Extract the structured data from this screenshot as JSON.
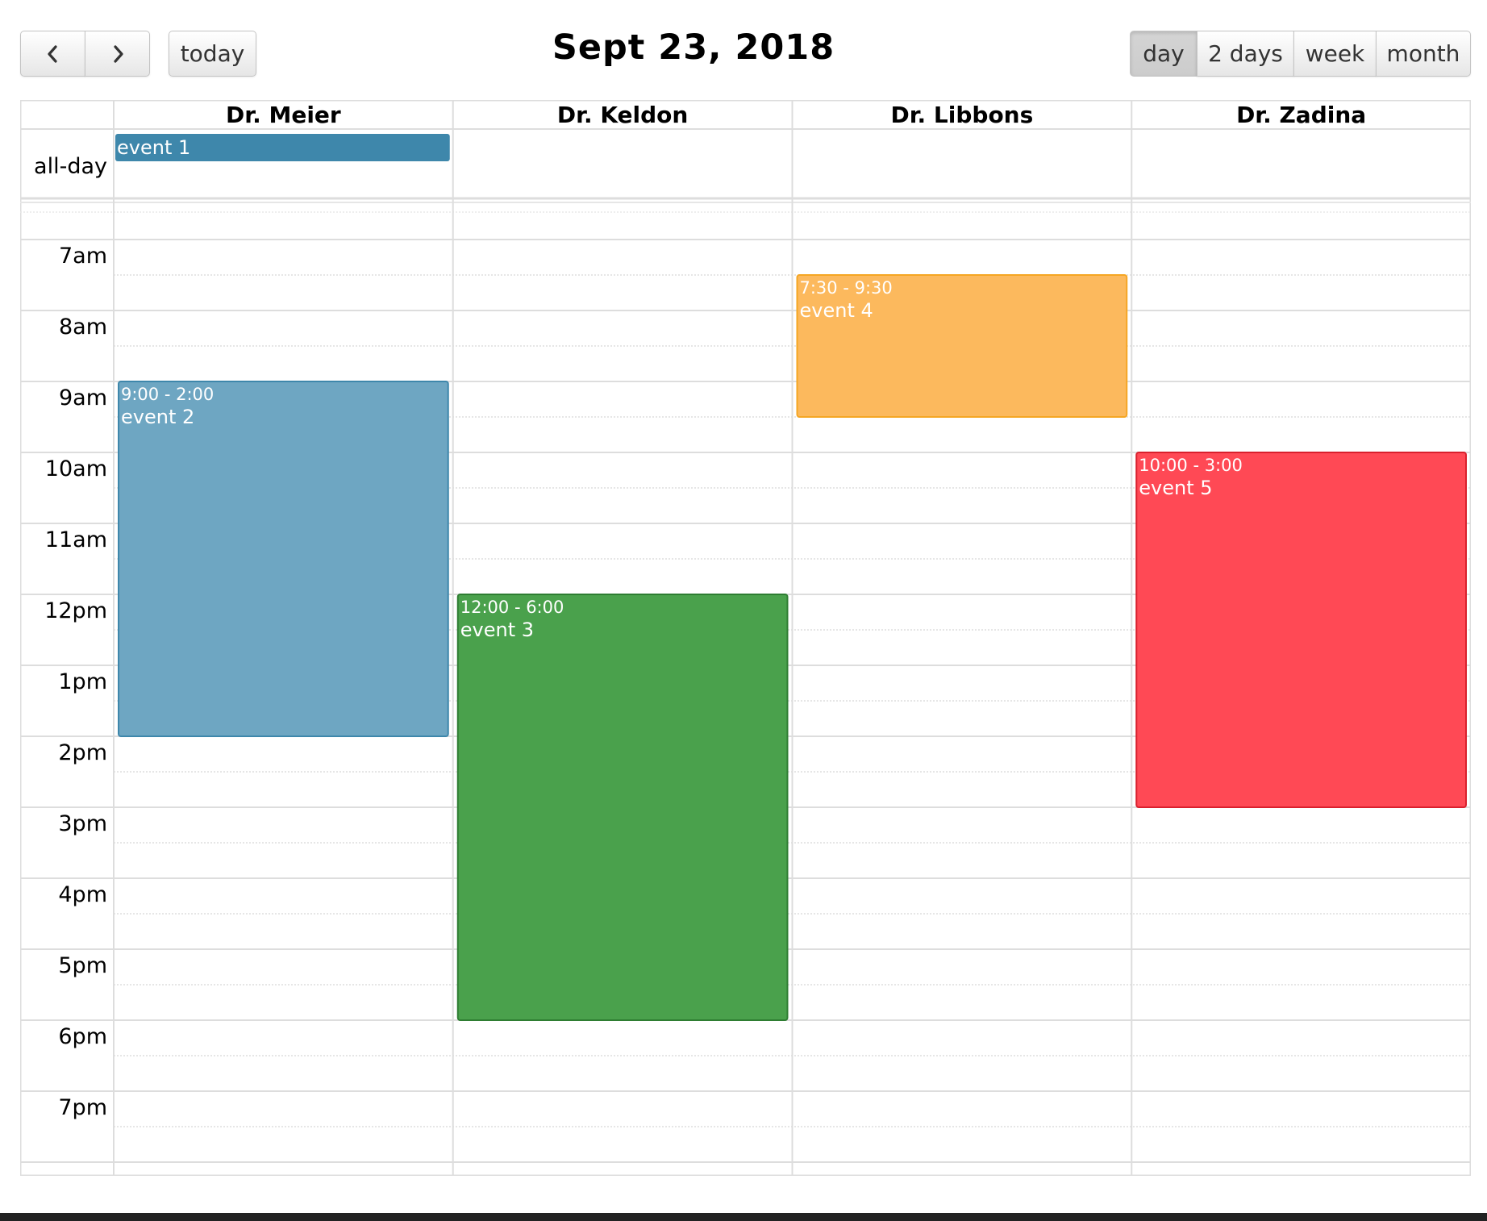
{
  "toolbar": {
    "prev_icon": "chevron-left-icon",
    "next_icon": "chevron-right-icon",
    "today_label": "today",
    "title": "Sept 23, 2018",
    "views": [
      {
        "label": "day",
        "active": true
      },
      {
        "label": "2 days",
        "active": false
      },
      {
        "label": "week",
        "active": false
      },
      {
        "label": "month",
        "active": false
      }
    ]
  },
  "calendar": {
    "resources": [
      "Dr. Meier",
      "Dr. Keldon",
      "Dr. Libbons",
      "Dr. Zadina"
    ],
    "all_day_label": "all-day",
    "first_visible_hour": 6.5,
    "last_visible_hour": 20.3,
    "hour_labels": [
      {
        "hour": 7,
        "label": "7am"
      },
      {
        "hour": 8,
        "label": "8am"
      },
      {
        "hour": 9,
        "label": "9am"
      },
      {
        "hour": 10,
        "label": "10am"
      },
      {
        "hour": 11,
        "label": "11am"
      },
      {
        "hour": 12,
        "label": "12pm"
      },
      {
        "hour": 13,
        "label": "1pm"
      },
      {
        "hour": 14,
        "label": "2pm"
      },
      {
        "hour": 15,
        "label": "3pm"
      },
      {
        "hour": 16,
        "label": "4pm"
      },
      {
        "hour": 17,
        "label": "5pm"
      },
      {
        "hour": 18,
        "label": "6pm"
      },
      {
        "hour": 19,
        "label": "7pm"
      }
    ],
    "all_day_events": [
      {
        "resource": 0,
        "title": "event 1",
        "color": "#3e87ab"
      }
    ],
    "events": [
      {
        "resource": 0,
        "start": 9,
        "end": 14,
        "time": "9:00 - 2:00",
        "title": "event 2",
        "color": "#6ea6c2",
        "border": "#3e87ab"
      },
      {
        "resource": 1,
        "start": 12,
        "end": 18,
        "time": "12:00 - 6:00",
        "title": "event 3",
        "color": "#4aa14c",
        "border": "#2e7d32"
      },
      {
        "resource": 2,
        "start": 7.5,
        "end": 9.5,
        "time": "7:30 - 9:30",
        "title": "event 4",
        "color": "#fcb95d",
        "border": "#f5a623"
      },
      {
        "resource": 3,
        "start": 10,
        "end": 15,
        "time": "10:00 - 3:00",
        "title": "event 5",
        "color": "#ff4955",
        "border": "#d9202d"
      }
    ]
  }
}
